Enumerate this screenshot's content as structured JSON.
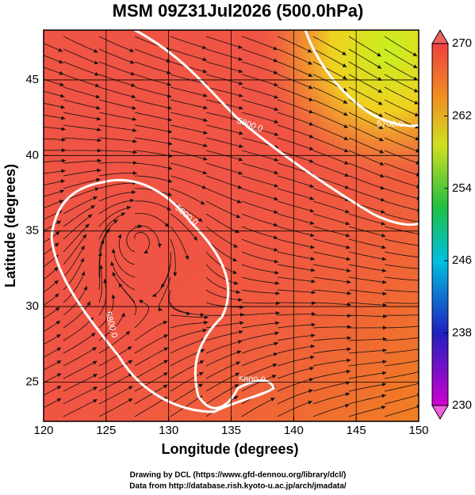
{
  "chart_data": {
    "type": "map",
    "title": "MSM 09Z31Jul2026 (500.0hPa)",
    "xlabel": "Longitude (degrees)",
    "ylabel": "Latitude  (degrees)",
    "xlim": [
      120,
      150
    ],
    "ylim": [
      22.4,
      48.3
    ],
    "xticks": [
      120,
      125,
      130,
      135,
      140,
      145,
      150
    ],
    "yticks": [
      25,
      30,
      35,
      40,
      45
    ],
    "grid": true,
    "colorbar": {
      "lim": [
        230,
        270
      ],
      "ticks": [
        230,
        238,
        246,
        254,
        262,
        270
      ]
    },
    "contour_labels": [
      "5800.0",
      "5800.0",
      "5800.0",
      "5800.0",
      "5700.0"
    ]
  },
  "footer": [
    "Drawing by DCL (https://www.gfd-dennou.org/library/dcl/)",
    "Data from http://database.rish.kyoto-u.ac.jp/arch/jmadata/"
  ]
}
